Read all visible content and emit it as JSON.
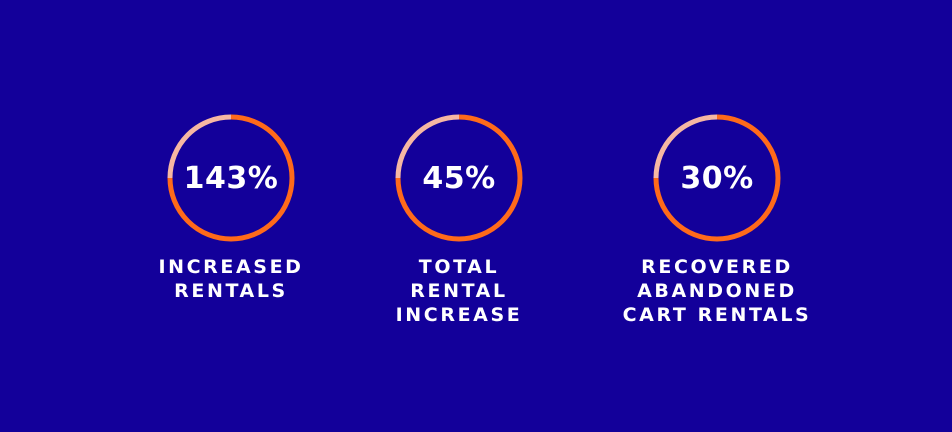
{
  "colors": {
    "background": "#13009a",
    "ring_primary": "#ff6a1a",
    "ring_faded": "#f6b7a3",
    "text": "#ffffff"
  },
  "stats": [
    {
      "value": "143%",
      "caption_lines": [
        "INCREASED",
        "RENTALS"
      ]
    },
    {
      "value": "45%",
      "caption_lines": [
        "TOTAL",
        "RENTAL",
        "INCREASE"
      ]
    },
    {
      "value": "30%",
      "caption_lines": [
        "RECOVERED",
        "ABANDONED",
        "CART RENTALS"
      ]
    }
  ]
}
